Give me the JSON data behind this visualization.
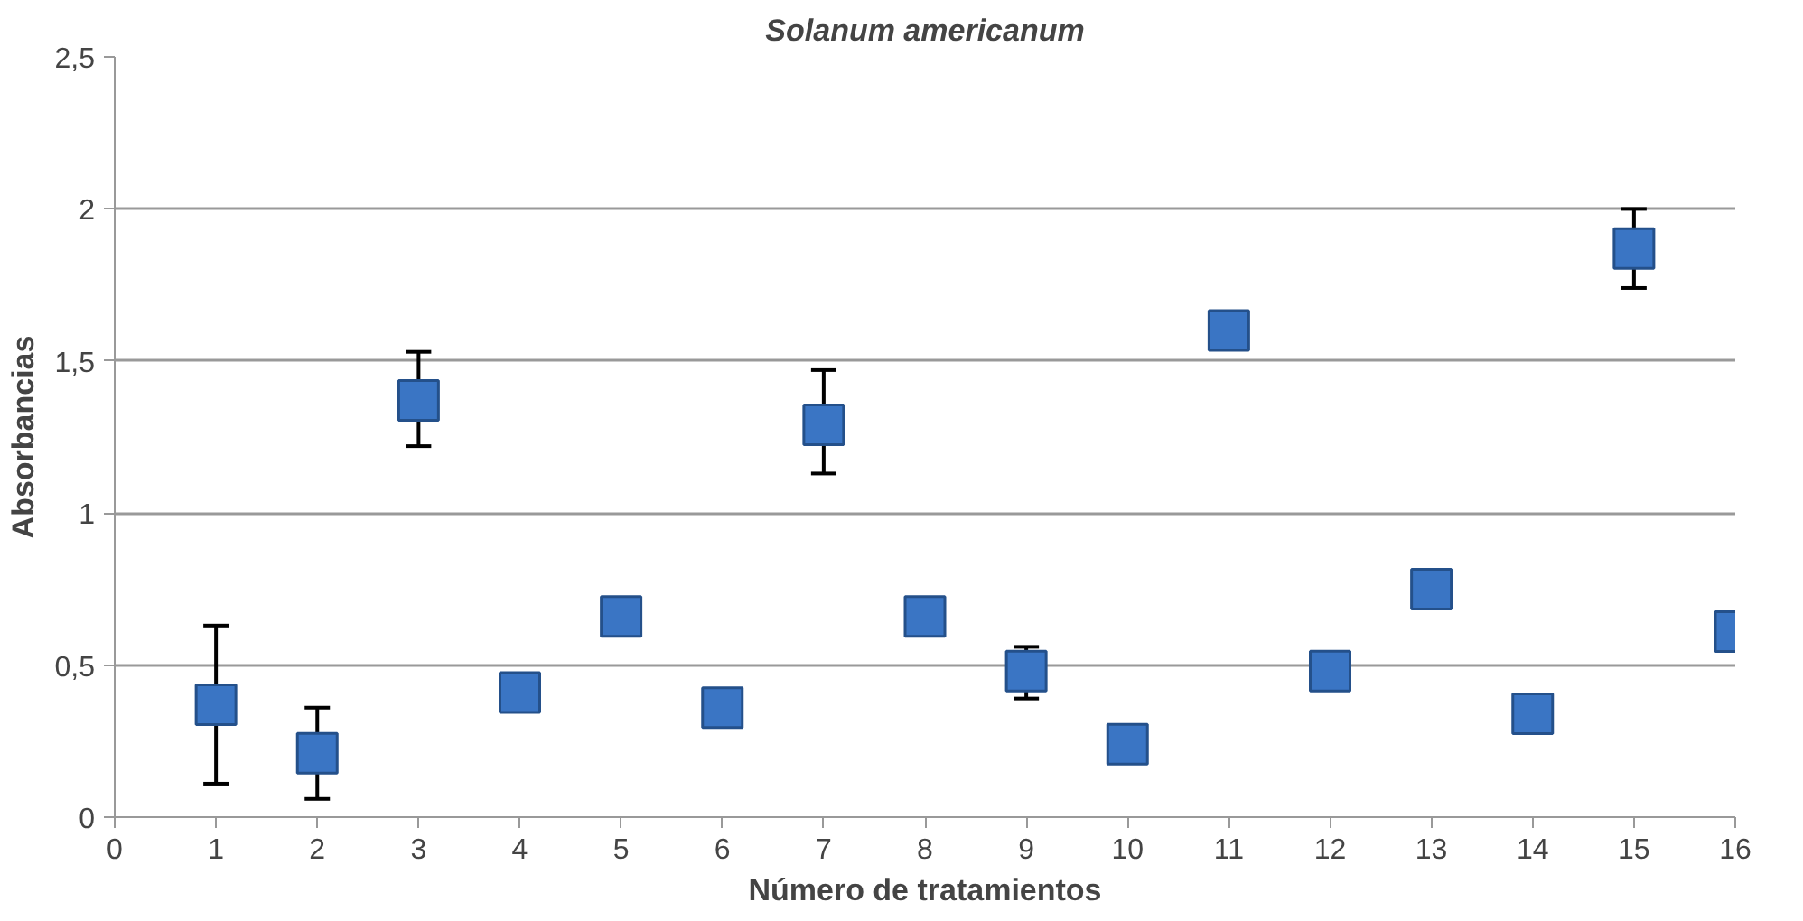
{
  "chart_data": {
    "type": "scatter",
    "title": "Solanum americanum",
    "xlabel": "Número de tratamientos",
    "ylabel": "Absorbancias",
    "x": [
      1,
      2,
      3,
      4,
      5,
      6,
      7,
      8,
      9,
      10,
      11,
      12,
      13,
      14,
      15,
      16
    ],
    "values": [
      0.37,
      0.21,
      1.37,
      0.41,
      0.66,
      0.36,
      1.29,
      0.66,
      0.48,
      0.24,
      1.6,
      0.48,
      0.75,
      0.34,
      1.87,
      0.61
    ],
    "errors": [
      [
        0.11,
        0.63
      ],
      [
        0.06,
        0.36
      ],
      [
        1.22,
        1.53
      ],
      null,
      null,
      null,
      [
        1.13,
        1.47
      ],
      null,
      [
        0.39,
        0.56
      ],
      null,
      null,
      null,
      null,
      null,
      [
        1.74,
        2.0
      ],
      null
    ],
    "color": "#3a75c4",
    "marker": "square",
    "grid": "y",
    "xlim": [
      0,
      16
    ],
    "xticks": [
      0,
      1,
      2,
      3,
      4,
      5,
      6,
      7,
      8,
      9,
      10,
      11,
      12,
      13,
      14,
      15,
      16
    ],
    "ylim": [
      0,
      2.5
    ],
    "yticks": [
      0,
      {
        "value": 0.5,
        "label": "0,5"
      },
      1,
      {
        "value": 1.5,
        "label": "1,5"
      },
      2,
      {
        "value": 2.5,
        "label": "2,5"
      }
    ]
  }
}
